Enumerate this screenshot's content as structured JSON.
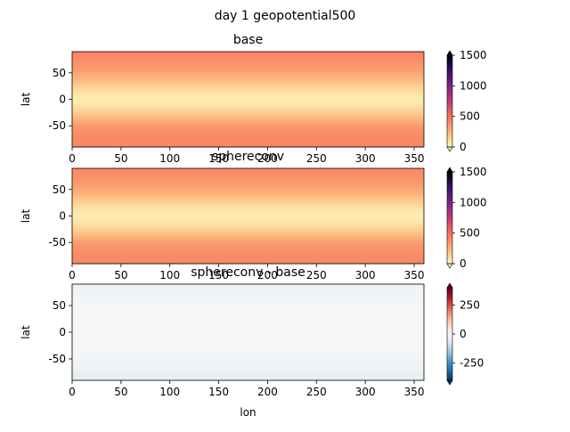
{
  "figure": {
    "suptitle": "day 1 geopotential500"
  },
  "chart_data": [
    {
      "type": "heatmap",
      "title": "base",
      "xlabel": "",
      "ylabel": "lat",
      "xlim": [
        0,
        360
      ],
      "ylim": [
        -90,
        90
      ],
      "x_ticks": [
        0,
        50,
        100,
        150,
        200,
        250,
        300,
        350
      ],
      "y_ticks": [
        50,
        0,
        -50
      ],
      "lat_profile": [
        {
          "lat": 90,
          "value": 430
        },
        {
          "lat": 70,
          "value": 380
        },
        {
          "lat": 55,
          "value": 330
        },
        {
          "lat": 40,
          "value": 250
        },
        {
          "lat": 25,
          "value": 160
        },
        {
          "lat": 10,
          "value": 80
        },
        {
          "lat": 0,
          "value": 60
        },
        {
          "lat": -10,
          "value": 80
        },
        {
          "lat": -25,
          "value": 160
        },
        {
          "lat": -40,
          "value": 270
        },
        {
          "lat": -55,
          "value": 370
        },
        {
          "lat": -70,
          "value": 400
        },
        {
          "lat": -90,
          "value": 420
        }
      ],
      "colorbar": {
        "cmap": "magma_r",
        "range": [
          0,
          1500
        ],
        "ticks": [
          0,
          500,
          1000,
          1500
        ],
        "extend": "both"
      }
    },
    {
      "type": "heatmap",
      "title": "sphereconv",
      "xlabel": "",
      "ylabel": "lat",
      "xlim": [
        0,
        360
      ],
      "ylim": [
        -90,
        90
      ],
      "x_ticks": [
        0,
        50,
        100,
        150,
        200,
        250,
        300,
        350
      ],
      "y_ticks": [
        50,
        0,
        -50
      ],
      "lat_profile": [
        {
          "lat": 90,
          "value": 420
        },
        {
          "lat": 70,
          "value": 370
        },
        {
          "lat": 55,
          "value": 320
        },
        {
          "lat": 40,
          "value": 240
        },
        {
          "lat": 25,
          "value": 150
        },
        {
          "lat": 10,
          "value": 75
        },
        {
          "lat": 0,
          "value": 55
        },
        {
          "lat": -10,
          "value": 75
        },
        {
          "lat": -25,
          "value": 150
        },
        {
          "lat": -40,
          "value": 260
        },
        {
          "lat": -55,
          "value": 360
        },
        {
          "lat": -70,
          "value": 390
        },
        {
          "lat": -90,
          "value": 410
        }
      ],
      "colorbar": {
        "cmap": "magma_r",
        "range": [
          0,
          1500
        ],
        "ticks": [
          0,
          500,
          1000,
          1500
        ],
        "extend": "both"
      }
    },
    {
      "type": "heatmap",
      "title": "sphereconv - base",
      "xlabel": "lon",
      "ylabel": "lat",
      "xlim": [
        0,
        360
      ],
      "ylim": [
        -90,
        90
      ],
      "x_ticks": [
        0,
        50,
        100,
        150,
        200,
        250,
        300,
        350
      ],
      "y_ticks": [
        50,
        0,
        -50
      ],
      "lat_profile": [
        {
          "lat": 90,
          "value": -20
        },
        {
          "lat": 70,
          "value": -12
        },
        {
          "lat": 50,
          "value": -6
        },
        {
          "lat": 30,
          "value": -3
        },
        {
          "lat": 15,
          "value": 4
        },
        {
          "lat": 0,
          "value": 2
        },
        {
          "lat": -15,
          "value": 5
        },
        {
          "lat": -30,
          "value": -3
        },
        {
          "lat": -50,
          "value": -8
        },
        {
          "lat": -65,
          "value": -18
        },
        {
          "lat": -78,
          "value": -35
        },
        {
          "lat": -90,
          "value": -28
        }
      ],
      "colorbar": {
        "cmap": "RdBu_r",
        "range": [
          -400,
          400
        ],
        "ticks": [
          250,
          0,
          -250
        ],
        "extend": "both"
      }
    }
  ]
}
